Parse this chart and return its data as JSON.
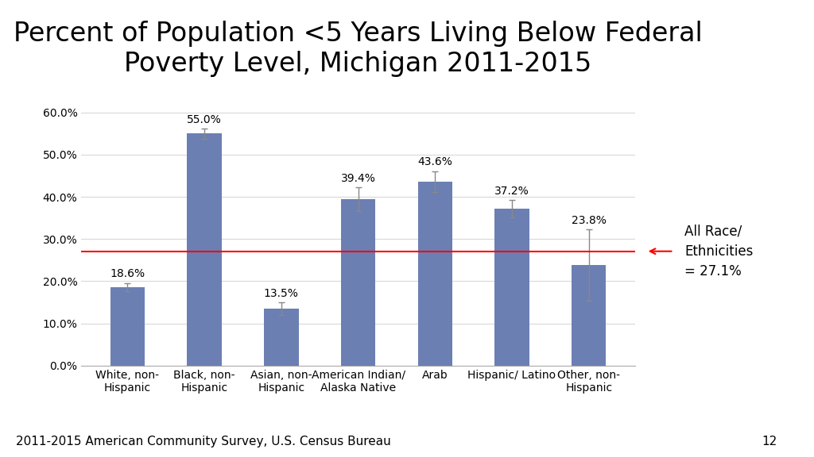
{
  "title": "Percent of Population <5 Years Living Below Federal\nPoverty Level, Michigan 2011-2015",
  "categories": [
    "White, non-\nHispanic",
    "Black, non-\nHispanic",
    "Asian, non-\nHispanic",
    "American Indian/\nAlaska Native",
    "Arab",
    "Hispanic/ Latino",
    "Other, non-\nHispanic"
  ],
  "values": [
    18.6,
    55.0,
    13.5,
    39.4,
    43.6,
    37.2,
    23.8
  ],
  "errors": [
    1.0,
    1.2,
    1.5,
    2.8,
    2.5,
    2.0,
    8.5
  ],
  "bar_color": "#6b7fb3",
  "reference_line": 27.1,
  "reference_label": "All Race/\nEthnicities\n= 27.1%",
  "ylabel_ticks": [
    0.0,
    10.0,
    20.0,
    30.0,
    40.0,
    50.0,
    60.0
  ],
  "footer_text": "2011-2015 American Community Survey, U.S. Census Bureau",
  "page_number": "12",
  "background_color": "#ffffff",
  "title_fontsize": 24,
  "tick_fontsize": 10,
  "label_fontsize": 10,
  "footer_fontsize": 11
}
